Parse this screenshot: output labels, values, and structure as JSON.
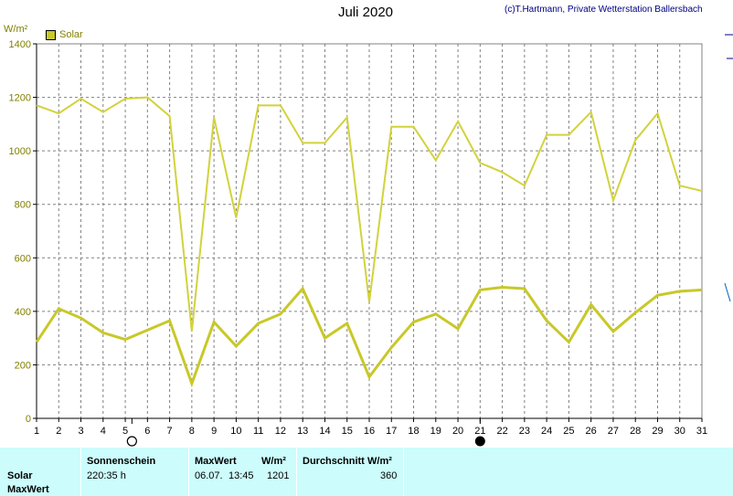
{
  "header": {
    "title": "Juli 2020",
    "copyright": "(c)T.Hartmann, Private Wetterstation Ballersbach",
    "unit": "W/m²"
  },
  "legend": {
    "label": "Solar",
    "color": "#c8c82a"
  },
  "chart_data": {
    "type": "line",
    "x": [
      1,
      2,
      3,
      4,
      5,
      6,
      7,
      8,
      9,
      10,
      11,
      12,
      13,
      14,
      15,
      16,
      17,
      18,
      19,
      20,
      21,
      22,
      23,
      24,
      25,
      26,
      27,
      28,
      29,
      30,
      31
    ],
    "ylim": [
      0,
      1400
    ],
    "yticks": [
      0,
      200,
      400,
      600,
      800,
      1000,
      1200,
      1400
    ],
    "grid": true,
    "legend_position": "top-left",
    "series": [
      {
        "name": "Solar",
        "color": "#d2d23c",
        "values": [
          1170,
          1140,
          1195,
          1145,
          1195,
          1200,
          1130,
          325,
          1125,
          750,
          1170,
          1170,
          1030,
          1030,
          1125,
          435,
          1090,
          1090,
          965,
          1110,
          955,
          920,
          870,
          1060,
          1060,
          1145,
          815,
          1040,
          1140,
          870,
          850
        ]
      },
      {
        "color": "#c8c82a",
        "values": [
          285,
          410,
          375,
          320,
          295,
          330,
          365,
          130,
          360,
          270,
          355,
          390,
          485,
          300,
          355,
          155,
          265,
          360,
          390,
          335,
          480,
          490,
          485,
          365,
          285,
          425,
          325,
          395,
          460,
          475,
          480
        ]
      }
    ],
    "markers": [
      {
        "x": 5.3,
        "symbol": "open-circle"
      },
      {
        "x": 21,
        "symbol": "filled-circle"
      }
    ]
  },
  "footer": {
    "row_labels": [
      "Solar",
      "MaxWert"
    ],
    "sunshine_header": "Sonnenschein",
    "sunshine_value": "220:35 h",
    "maxwert_header": "MaxWert",
    "maxwert_unit": "W/m²",
    "maxwert_date": "06.07.",
    "maxwert_time": "13:45",
    "maxwert_value": "1201",
    "avg_header": "Durchschnitt",
    "avg_unit": "W/m²",
    "avg_value": "360"
  }
}
